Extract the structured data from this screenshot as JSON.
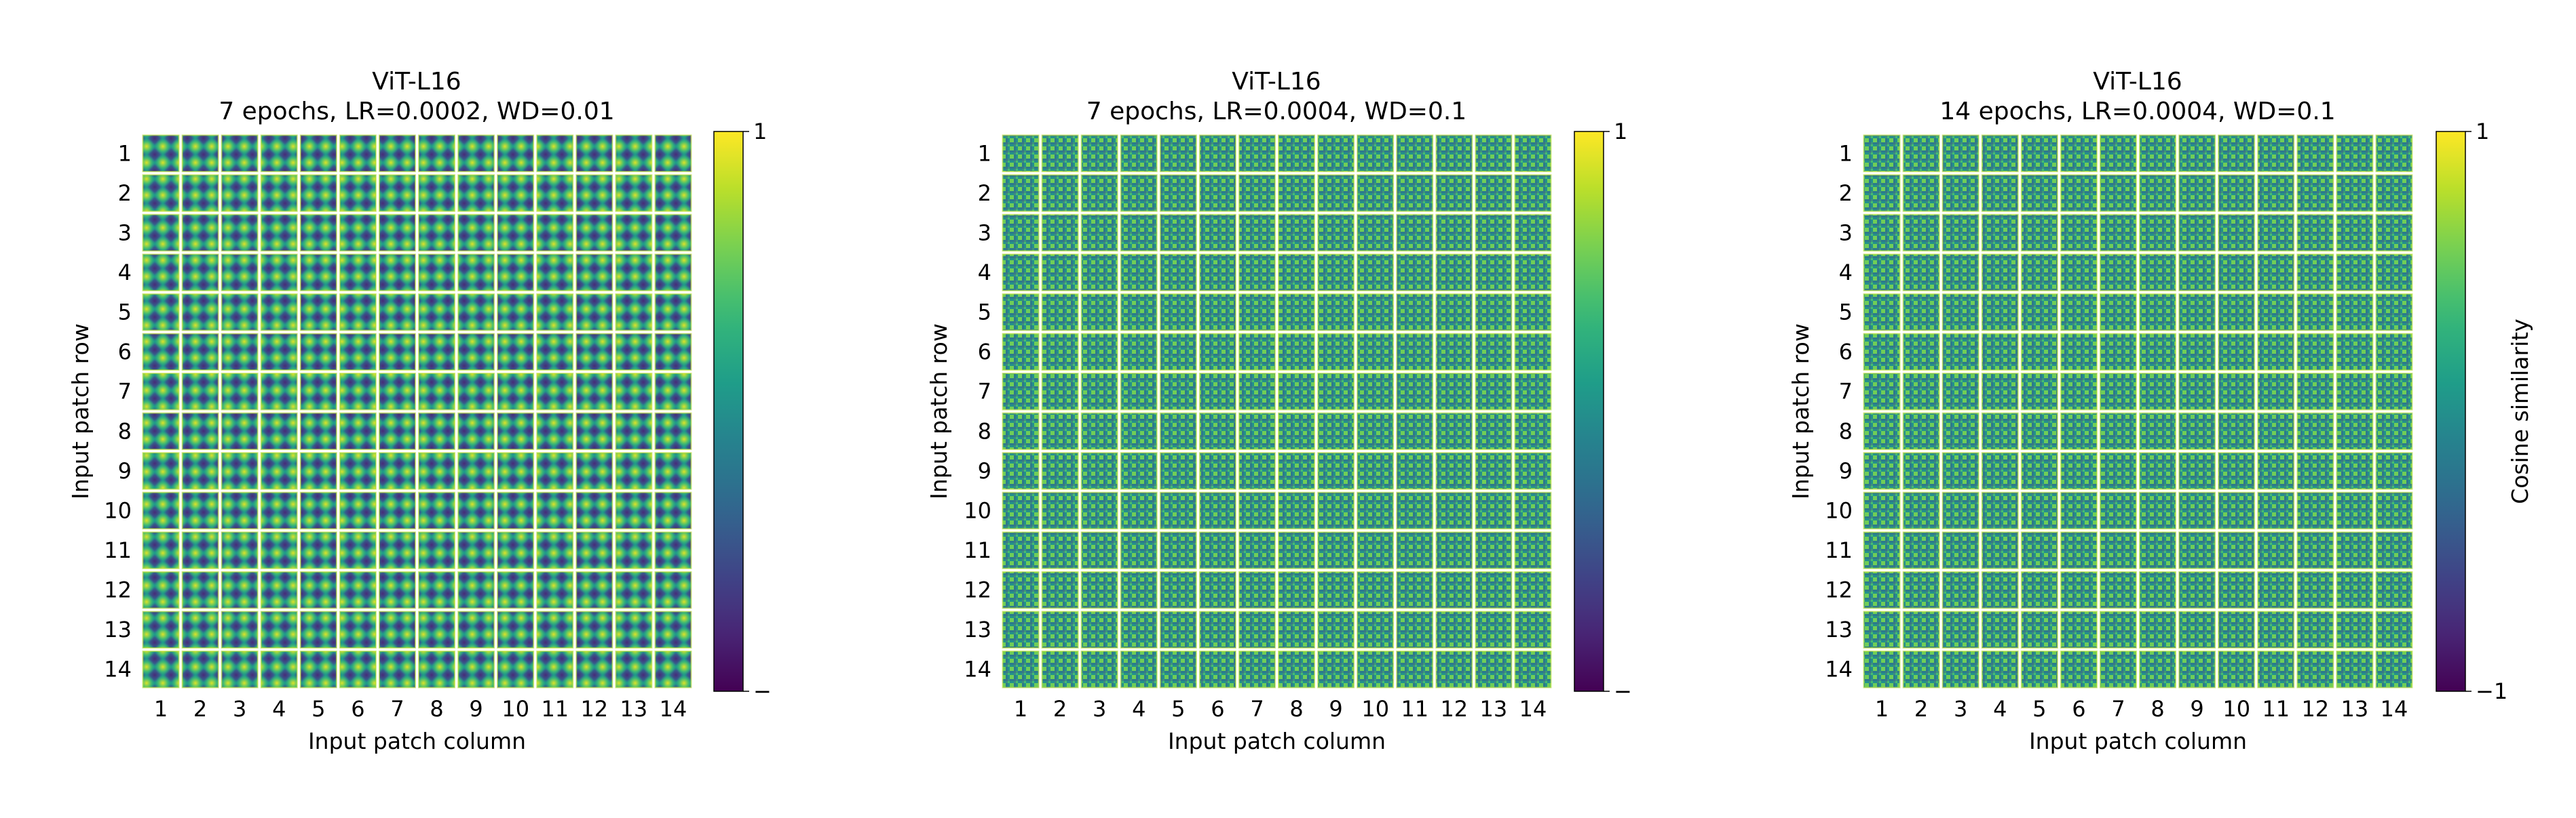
{
  "chart_data": [
    {
      "type": "heatmap",
      "title_line1": "ViT-L16",
      "title_line2": "7 epochs, LR=0.0002, WD=0.01",
      "xlabel": "Input patch column",
      "ylabel": "Input patch row",
      "columns": [
        "1",
        "2",
        "3",
        "4",
        "5",
        "6",
        "7",
        "8",
        "9",
        "10",
        "11",
        "12",
        "13",
        "14"
      ],
      "rows": [
        "1",
        "2",
        "3",
        "4",
        "5",
        "6",
        "7",
        "8",
        "9",
        "10",
        "11",
        "12",
        "13",
        "14"
      ],
      "value_range": [
        -1,
        1
      ],
      "colormap": "viridis",
      "colorbar": {
        "label": "",
        "tick_top": "1",
        "tick_bottom": "−"
      },
      "pattern": "smooth low-frequency positional similarity blobs"
    },
    {
      "type": "heatmap",
      "title_line1": "ViT-L16",
      "title_line2": "7 epochs, LR=0.0004, WD=0.1",
      "xlabel": "Input patch column",
      "ylabel": "Input patch row",
      "columns": [
        "1",
        "2",
        "3",
        "4",
        "5",
        "6",
        "7",
        "8",
        "9",
        "10",
        "11",
        "12",
        "13",
        "14"
      ],
      "rows": [
        "1",
        "2",
        "3",
        "4",
        "5",
        "6",
        "7",
        "8",
        "9",
        "10",
        "11",
        "12",
        "13",
        "14"
      ],
      "value_range": [
        -1,
        1
      ],
      "colormap": "viridis",
      "colorbar": {
        "label": "",
        "tick_top": "1",
        "tick_bottom": "−"
      },
      "pattern": "high-frequency checkerboard positional similarity"
    },
    {
      "type": "heatmap",
      "title_line1": "ViT-L16",
      "title_line2": "14 epochs, LR=0.0004, WD=0.1",
      "xlabel": "Input patch column",
      "ylabel": "Input patch row",
      "columns": [
        "1",
        "2",
        "3",
        "4",
        "5",
        "6",
        "7",
        "8",
        "9",
        "10",
        "11",
        "12",
        "13",
        "14"
      ],
      "rows": [
        "1",
        "2",
        "3",
        "4",
        "5",
        "6",
        "7",
        "8",
        "9",
        "10",
        "11",
        "12",
        "13",
        "14"
      ],
      "value_range": [
        -1,
        1
      ],
      "colormap": "viridis",
      "colorbar": {
        "label": "Cosine similarity",
        "tick_top": "1",
        "tick_bottom": "−1"
      },
      "pattern": "high-frequency checkerboard positional similarity"
    }
  ],
  "colors": {
    "viridis": [
      "#440154",
      "#482878",
      "#3e4989",
      "#31688e",
      "#26828e",
      "#1f9e89",
      "#35b779",
      "#6ece58",
      "#b5de2b",
      "#fde725"
    ],
    "grid_line": "#ffffff",
    "axis": "#000000"
  }
}
